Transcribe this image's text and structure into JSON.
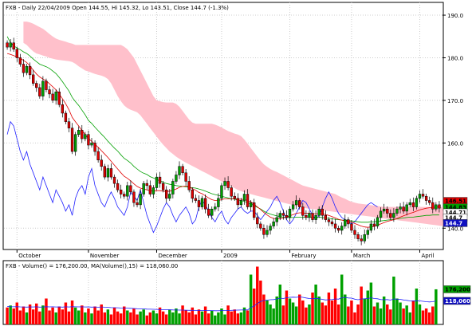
{
  "chart_data": [
    {
      "type": "candlestick",
      "title": "FXB - Daily 22/04/2009 Open 144.55, Hi 145.32, Lo 143.51, Close 144.7 (-1.3%)",
      "y_ticks": [
        "190.0",
        "180.0",
        "170.0",
        "160.0",
        "140.0"
      ],
      "ylim": [
        135,
        193
      ],
      "x_labels": [
        {
          "label": "October",
          "day": 3
        },
        {
          "label": "November",
          "day": 25
        },
        {
          "label": "December",
          "day": 46
        },
        {
          "label": "2009",
          "day": 66
        },
        {
          "label": "February",
          "day": 87
        },
        {
          "label": "March",
          "day": 106
        },
        {
          "label": "April",
          "day": 127
        }
      ],
      "price_tags": [
        {
          "label": "146.51",
          "value": 146.4,
          "color": "#e00000",
          "text_color": "#000000"
        },
        {
          "label": "144.83",
          "value": 144.9,
          "color": "#00a000",
          "text_color": "#000000"
        },
        {
          "label": "144.71",
          "value": 143.7,
          "color": "#ffffff",
          "text_color": "#000000"
        },
        {
          "label": "144.7",
          "value": 142.5,
          "color": "#ffffff",
          "text_color": "#000000"
        },
        {
          "label": "144.7",
          "value": 141.2,
          "color": "#1010c0",
          "text_color": "#ffffff"
        }
      ],
      "cloud": {
        "name": "Ichimoku cloud",
        "color": "#ffc0cb",
        "day_start": 5,
        "upper": [
          188.5,
          188.5,
          188.3,
          188.0,
          187.6,
          187.2,
          186.8,
          186.2,
          185.6,
          185.0,
          184.5,
          184.2,
          184.0,
          183.8,
          183.5,
          183.3,
          183.0,
          183.0,
          183.0,
          183.0,
          183.0,
          183.0,
          183.0,
          183.0,
          183.0,
          183.0,
          183.0,
          183.0,
          183.0,
          183.0,
          183.0,
          182.6,
          182.0,
          181.0,
          180.0,
          178.5,
          177.0,
          175.5,
          174.0,
          172.5,
          171.0,
          170.0,
          169.8,
          169.6,
          169.5,
          169.5,
          169.5,
          169.2,
          168.5,
          167.5,
          166.5,
          165.5,
          164.8,
          164.5,
          164.5,
          164.5,
          164.5,
          164.5,
          164.5,
          164.3,
          164.0,
          163.6,
          163.2,
          162.8,
          162.5,
          162.2,
          162.0,
          161.6,
          160.8,
          159.8,
          158.8,
          157.8,
          156.8,
          155.8,
          155.0,
          154.4,
          153.9,
          153.5,
          153.2,
          152.8,
          152.4,
          152.0,
          151.6,
          151.2,
          150.8,
          150.4,
          150.0,
          149.8,
          149.6,
          149.4,
          149.2,
          149.0,
          148.8,
          148.6,
          148.4,
          148.2,
          148.0,
          147.6,
          147.2,
          146.9,
          146.5,
          146.2,
          146.0,
          145.8,
          145.7,
          145.6,
          145.5,
          145.4,
          145.3,
          145.2,
          145.1,
          145.0,
          145.0,
          145.0,
          145.0,
          145.0,
          145.0,
          145.0,
          145.0,
          145.0,
          145.0,
          145.0,
          145.0,
          145.0,
          145.0,
          145.0,
          145.0,
          145.0,
          145.0,
          145.0,
          145.0
        ],
        "lower": [
          183.5,
          183.0,
          182.2,
          181.5,
          181.0,
          180.8,
          180.5,
          180.3,
          180.0,
          179.8,
          179.6,
          179.5,
          179.4,
          179.3,
          179.2,
          179.0,
          178.6,
          178.0,
          177.5,
          177.0,
          176.8,
          176.5,
          176.2,
          176.0,
          175.8,
          175.5,
          175.0,
          174.0,
          172.5,
          171.0,
          169.8,
          168.8,
          168.2,
          167.8,
          167.5,
          167.2,
          166.5,
          165.5,
          164.5,
          163.5,
          162.5,
          161.5,
          160.5,
          159.6,
          158.8,
          158.0,
          157.4,
          156.8,
          156.3,
          155.8,
          155.4,
          155.0,
          154.6,
          154.2,
          153.8,
          153.4,
          153.0,
          152.6,
          152.2,
          151.8,
          151.4,
          151.0,
          150.6,
          150.2,
          149.8,
          149.4,
          149.0,
          148.7,
          148.4,
          148.2,
          148.0,
          147.8,
          147.6,
          147.4,
          147.2,
          147.0,
          146.8,
          146.6,
          146.4,
          146.2,
          146.0,
          145.8,
          145.6,
          145.4,
          145.2,
          145.0,
          144.8,
          144.7,
          144.6,
          144.5,
          144.4,
          144.3,
          144.2,
          144.1,
          144.0,
          143.9,
          143.8,
          143.7,
          143.6,
          143.5,
          143.4,
          143.3,
          143.2,
          143.1,
          143.0,
          142.9,
          142.8,
          142.7,
          142.6,
          142.5,
          142.4,
          142.3,
          142.2,
          142.1,
          142.0,
          141.9,
          141.8,
          141.7,
          141.6,
          141.5,
          141.4,
          141.3,
          141.2,
          141.1,
          141.0,
          140.9,
          140.8,
          140.7,
          140.6,
          140.5,
          140.4
        ]
      },
      "closes": [
        182.5,
        183.5,
        182.0,
        180.0,
        178.5,
        176.5,
        178.0,
        176.0,
        174.0,
        173.0,
        171.0,
        174.5,
        172.5,
        171.5,
        170.0,
        172.0,
        169.0,
        167.0,
        165.0,
        163.5,
        158.0,
        162.0,
        163.0,
        161.0,
        162.0,
        159.5,
        160.0,
        158.0,
        156.0,
        154.5,
        152.0,
        154.0,
        152.0,
        150.5,
        149.0,
        148.0,
        147.5,
        150.0,
        148.5,
        146.0,
        145.5,
        148.0,
        150.5,
        150.0,
        148.0,
        149.5,
        152.0,
        150.5,
        149.0,
        147.0,
        148.0,
        151.0,
        152.5,
        154.5,
        153.0,
        151.0,
        149.0,
        147.0,
        146.5,
        145.0,
        147.0,
        144.5,
        143.0,
        144.5,
        145.0,
        147.0,
        150.0,
        151.0,
        149.5,
        147.5,
        147.0,
        145.5,
        146.5,
        148.0,
        145.0,
        146.0,
        142.5,
        141.0,
        140.0,
        138.5,
        139.5,
        140.5,
        141.5,
        142.5,
        143.5,
        143.0,
        142.5,
        144.5,
        145.5,
        146.5,
        145.0,
        143.0,
        142.5,
        143.5,
        142.0,
        143.0,
        144.5,
        143.0,
        142.0,
        141.5,
        141.0,
        140.0,
        139.5,
        140.5,
        142.0,
        141.0,
        139.5,
        138.5,
        137.5,
        137.0,
        138.5,
        139.5,
        141.0,
        140.5,
        142.5,
        144.0,
        144.5,
        143.5,
        142.5,
        143.5,
        144.5,
        145.0,
        144.0,
        145.5,
        146.0,
        145.0,
        147.0,
        148.0,
        147.5,
        146.5,
        146.0,
        144.5,
        145.5,
        144.7
      ],
      "mov_avg_green": [
        185.0,
        183.5,
        182.8,
        182.3,
        181.9,
        181.4,
        181.0,
        180.4,
        179.7,
        179.1,
        178.5,
        178.2,
        177.9,
        177.5,
        176.9,
        176.3,
        175.4,
        174.4,
        173.3,
        172.2,
        170.7,
        169.7,
        168.8,
        167.7,
        166.6,
        165.3,
        164.6,
        163.7,
        162.9,
        162.1,
        161.3,
        160.4,
        159.6,
        158.8,
        158.1,
        157.2,
        156.4,
        155.9,
        155.3,
        154.5,
        153.9,
        153.3,
        152.9,
        152.6,
        152.1,
        151.8,
        151.4,
        151.1,
        150.8,
        150.5,
        150.3,
        150.2,
        150.0,
        149.9,
        149.8,
        149.7,
        149.6,
        149.5,
        149.4,
        149.2,
        149.0,
        148.7,
        148.4,
        148.1,
        147.9,
        147.7,
        147.5,
        147.3,
        147.1,
        146.9,
        146.8,
        146.6,
        146.5,
        146.3,
        146.0,
        145.7,
        145.3,
        144.9,
        144.5,
        144.0,
        143.6,
        143.3,
        143.1,
        142.9,
        142.7,
        142.6,
        142.5,
        142.5,
        142.5,
        142.6,
        142.6,
        142.6,
        142.6,
        142.6,
        142.6,
        142.6,
        142.6,
        142.5,
        142.4,
        142.3,
        142.2,
        142.1,
        142.0,
        141.9,
        141.9,
        141.8,
        141.7,
        141.6,
        141.5,
        141.4,
        141.4,
        141.4,
        141.5,
        141.5,
        141.6,
        141.7,
        141.8,
        141.9,
        142.0,
        142.1,
        142.2,
        142.3,
        142.4,
        142.5,
        142.6,
        142.6,
        142.7,
        142.8,
        142.9,
        143.0,
        143.0,
        143.1,
        143.1,
        143.1
      ],
      "mov_avg_red": [
        181.0,
        180.8,
        180.5,
        180.2,
        179.9,
        179.4,
        178.9,
        178.1,
        177.1,
        176.2,
        175.5,
        175.0,
        174.6,
        173.9,
        173.2,
        172.5,
        171.5,
        170.4,
        169.2,
        167.8,
        166.0,
        165.0,
        164.0,
        162.9,
        162.0,
        161.0,
        160.4,
        159.7,
        159.0,
        158.2,
        157.4,
        156.6,
        155.7,
        154.8,
        153.9,
        153.0,
        152.2,
        151.7,
        151.1,
        150.4,
        149.8,
        149.4,
        149.2,
        149.0,
        148.8,
        148.7,
        148.8,
        148.8,
        148.7,
        148.6,
        148.7,
        148.9,
        149.2,
        149.6,
        149.8,
        149.9,
        149.7,
        149.3,
        148.9,
        148.4,
        148.1,
        147.6,
        147.1,
        146.7,
        146.5,
        146.5,
        146.7,
        146.9,
        146.9,
        146.9,
        146.9,
        146.8,
        146.8,
        146.7,
        146.5,
        146.2,
        145.6,
        145.0,
        144.4,
        143.7,
        143.1,
        142.6,
        142.3,
        142.2,
        142.2,
        142.4,
        142.6,
        142.9,
        143.2,
        143.5,
        143.6,
        143.6,
        143.5,
        143.5,
        143.4,
        143.4,
        143.4,
        143.4,
        143.2,
        143.0,
        142.7,
        142.4,
        142.1,
        141.9,
        141.7,
        141.6,
        141.4,
        141.1,
        140.8,
        140.5,
        140.3,
        140.2,
        140.3,
        140.4,
        140.7,
        141.0,
        141.3,
        141.6,
        141.8,
        142.0,
        142.3,
        142.6,
        142.9,
        143.2,
        143.5,
        143.7,
        144.0,
        144.3,
        144.5,
        144.7,
        144.8,
        144.9,
        145.0,
        145.0
      ],
      "lagging_blue": [
        162.0,
        165.0,
        164.0,
        161.0,
        158.0,
        156.0,
        158.0,
        155.0,
        153.0,
        151.0,
        149.0,
        152.0,
        150.0,
        148.0,
        146.0,
        149.0,
        147.5,
        146.0,
        144.0,
        145.5,
        143.0,
        147.0,
        149.0,
        150.0,
        148.0,
        152.0,
        154.0,
        150.0,
        148.0,
        146.0,
        145.0,
        147.0,
        148.5,
        147.0,
        145.0,
        144.0,
        143.0,
        145.0,
        148.5,
        147.5,
        146.5,
        149.0,
        146.0,
        143.0,
        141.0,
        139.0,
        140.5,
        142.5,
        144.5,
        146.0,
        145.0,
        143.0,
        141.5,
        143.0,
        144.0,
        145.0,
        143.5,
        141.0,
        142.0,
        145.0,
        146.5,
        145.5,
        144.0,
        142.5,
        141.5,
        143.0,
        144.0,
        142.0,
        141.0,
        142.5,
        143.5,
        144.5,
        145.0,
        144.0,
        143.5,
        144.0,
        144.0,
        143.0,
        142.0,
        143.0,
        144.0,
        145.0,
        146.5,
        147.5,
        146.0,
        144.0,
        142.0,
        141.0,
        142.0,
        143.5,
        145.0,
        146.5,
        146.0,
        144.5,
        143.0,
        142.0,
        143.0,
        145.0,
        147.0,
        148.5,
        147.0,
        145.0,
        143.5,
        142.5,
        142.0,
        141.5,
        141.0,
        141.5,
        142.5,
        143.5,
        144.5,
        145.5,
        146.0,
        145.5,
        145.0
      ],
      "mov_avg_green_color": "#00a000",
      "mov_avg_red_color": "#e00000",
      "lagging_blue_color": "#2020ff"
    },
    {
      "type": "bar",
      "title": "FXB - Volume() = 176,200.00, MA(Volume(),15) = 118,060.00",
      "price_tags": [
        {
          "label": "176,200",
          "value": 176200,
          "color": "#00a000",
          "text_color": "#000000"
        },
        {
          "label": "118,060",
          "value": 118060,
          "color": "#1010c0",
          "text_color": "#ffffff"
        }
      ],
      "ylim": [
        0,
        320000
      ],
      "volumes": [
        85000,
        95000,
        80000,
        110000,
        70000,
        90000,
        60000,
        100000,
        75000,
        105000,
        65000,
        95000,
        130000,
        70000,
        85000,
        60000,
        90000,
        75000,
        110000,
        65000,
        120000,
        85000,
        70000,
        95000,
        60000,
        80000,
        55000,
        90000,
        70000,
        100000,
        60000,
        75000,
        50000,
        85000,
        65000,
        55000,
        90000,
        70000,
        60000,
        80000,
        50000,
        65000,
        75000,
        45000,
        60000,
        70000,
        55000,
        85000,
        65000,
        50000,
        75000,
        60000,
        80000,
        55000,
        95000,
        70000,
        60000,
        85000,
        50000,
        75000,
        65000,
        90000,
        55000,
        70000,
        45000,
        60000,
        80000,
        50000,
        95000,
        65000,
        75000,
        55000,
        60000,
        85000,
        70000,
        250000,
        180000,
        290000,
        220000,
        150000,
        120000,
        100000,
        80000,
        140000,
        200000,
        95000,
        170000,
        130000,
        110000,
        90000,
        150000,
        120000,
        85000,
        100000,
        160000,
        200000,
        140000,
        110000,
        95000,
        160000,
        120000,
        180000,
        100000,
        250000,
        150000,
        90000,
        120000,
        60000,
        100000,
        190000,
        130000,
        170000,
        210000,
        90000,
        110000,
        80000,
        140000,
        100000,
        75000,
        240000,
        130000,
        110000,
        80000,
        95000,
        60000,
        120000,
        180000,
        100000,
        70000,
        80000,
        60000,
        90000,
        176200
      ],
      "ma_volume": [
        90000,
        89000,
        88500,
        89000,
        88000,
        87500,
        87000,
        88000,
        87500,
        88500,
        87000,
        87500,
        89000,
        88000,
        88500,
        87500,
        88000,
        87000,
        88500,
        87500,
        89000,
        88500,
        88000,
        88500,
        87500,
        88000,
        87000,
        87500,
        86500,
        87500,
        86500,
        85500,
        84500,
        84000,
        83500,
        82500,
        82000,
        81500,
        81000,
        80000,
        79000,
        78500,
        78000,
        77000,
        76500,
        76000,
        75500,
        75000,
        74500,
        74000,
        73500,
        73000,
        72500,
        72000,
        72000,
        71500,
        71000,
        71000,
        70500,
        70500,
        70000,
        70000,
        69500,
        69500,
        69000,
        69000,
        69500,
        70000,
        70500,
        71000,
        71500,
        72000,
        72500,
        73000,
        73000,
        85000,
        92000,
        105000,
        115000,
        120000,
        122000,
        124000,
        125000,
        128000,
        132000,
        130000,
        134000,
        136000,
        137000,
        136000,
        138000,
        136000,
        133000,
        130000,
        129000,
        131000,
        129000,
        126000,
        123000,
        124000,
        125000,
        128000,
        127000,
        134000,
        136000,
        133000,
        132000,
        127000,
        124000,
        128000,
        129000,
        130000,
        134000,
        130000,
        129000,
        125000,
        124000,
        125000,
        122000,
        128000,
        127000,
        126000,
        123000,
        121000,
        118000,
        117000,
        119000,
        118000,
        116000,
        114000,
        113000,
        114000,
        118060
      ],
      "up_color": "#00a000",
      "down_color": "#ff0000",
      "ma_color": "#2020ff"
    }
  ]
}
